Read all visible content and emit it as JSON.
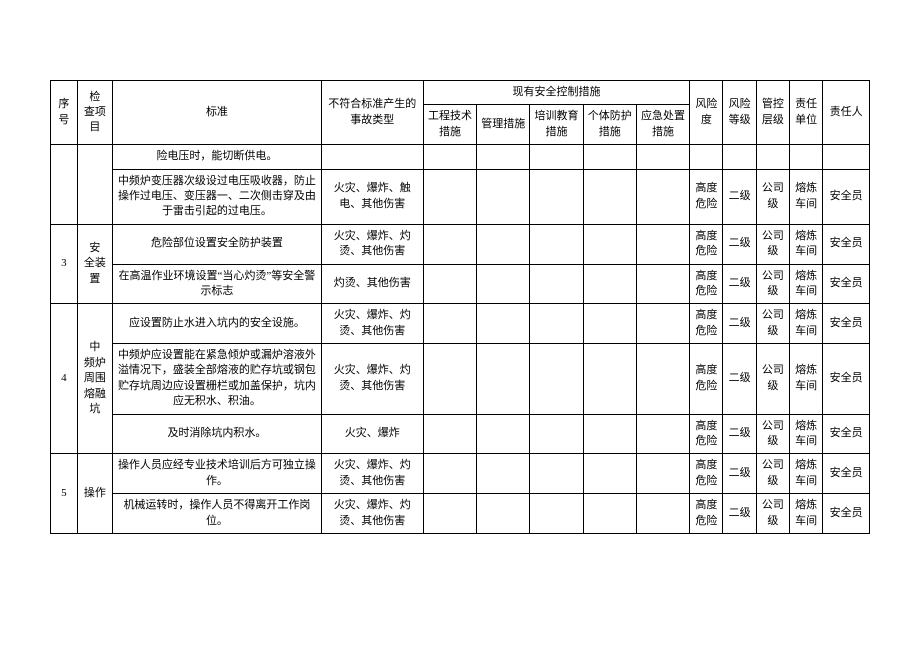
{
  "header": {
    "seq": "序号",
    "item": "检　查项目",
    "std": "标准",
    "acc": "不符合标准产生的事故类型",
    "measures_group": "现有安全控制措施",
    "eng": "工程技术措施",
    "mgmt": "管理措施",
    "edu": "培训教育措施",
    "ppe": "个体防护措施",
    "emg": "应急处置措施",
    "risk": "风险度",
    "level": "风险等级",
    "ctrl": "管控层级",
    "unit": "责任单位",
    "resp": "责任人"
  },
  "rows": [
    {
      "seq": "",
      "item": "",
      "std": "险电压时，能切断供电。",
      "acc": "",
      "eng": "",
      "mgmt": "",
      "edu": "",
      "ppe": "",
      "emg": "",
      "risk": "",
      "level": "",
      "ctrl": "",
      "unit": "",
      "resp": ""
    },
    {
      "seq": "",
      "item": "",
      "std": "中频炉变压器次级设过电压吸收器，防止操作过电压、变压器一、二次侧击穿及由于雷击引起的过电压。",
      "acc": "火灾、爆炸、触电、其他伤害",
      "eng": "",
      "mgmt": "",
      "edu": "",
      "ppe": "",
      "emg": "",
      "risk": "高度危险",
      "level": "二级",
      "ctrl": "公司级",
      "unit": "熔炼车间",
      "resp": "安全员"
    },
    {
      "seq": "3",
      "item": "安　全装置",
      "std": "危险部位设置安全防护装置",
      "acc": "火灾、爆炸、灼烫、其他伤害",
      "eng": "",
      "mgmt": "",
      "edu": "",
      "ppe": "",
      "emg": "",
      "risk": "高度危险",
      "level": "二级",
      "ctrl": "公司级",
      "unit": "熔炼车间",
      "resp": "安全员"
    },
    {
      "seq": "",
      "item": "",
      "std": "在高温作业环境设置“当心灼烫”等安全警示标志",
      "acc": "灼烫、其他伤害",
      "eng": "",
      "mgmt": "",
      "edu": "",
      "ppe": "",
      "emg": "",
      "risk": "高度危险",
      "level": "二级",
      "ctrl": "公司级",
      "unit": "熔炼车间",
      "resp": "安全员"
    },
    {
      "seq": "4",
      "item": "中　频炉　周围　熔融坑",
      "std": "应设置防止水进入坑内的安全设施。",
      "acc": "火灾、爆炸、灼烫、其他伤害",
      "eng": "",
      "mgmt": "",
      "edu": "",
      "ppe": "",
      "emg": "",
      "risk": "高度危险",
      "level": "二级",
      "ctrl": "公司级",
      "unit": "熔炼车间",
      "resp": "安全员"
    },
    {
      "seq": "",
      "item": "",
      "std": "中频炉应设置能在紧急倾炉或漏炉溶液外溢情况下，盛装全部熔液的贮存坑或钢包贮存坑周边应设置栅栏或加盖保护，坑内应无积水、积油。",
      "acc": "火灾、爆炸、灼烫、其他伤害",
      "eng": "",
      "mgmt": "",
      "edu": "",
      "ppe": "",
      "emg": "",
      "risk": "高度危险",
      "level": "二级",
      "ctrl": "公司级",
      "unit": "熔炼车间",
      "resp": "安全员"
    },
    {
      "seq": "",
      "item": "",
      "std": "及时消除坑内积水。",
      "acc": "火灾、爆炸",
      "eng": "",
      "mgmt": "",
      "edu": "",
      "ppe": "",
      "emg": "",
      "risk": "高度危险",
      "level": "二级",
      "ctrl": "公司级",
      "unit": "熔炼车间",
      "resp": "安全员"
    },
    {
      "seq": "5",
      "item": "操作",
      "std": "操作人员应经专业技术培训后方可独立操作。",
      "acc": "火灾、爆炸、灼烫、其他伤害",
      "eng": "",
      "mgmt": "",
      "edu": "",
      "ppe": "",
      "emg": "",
      "risk": "高度危险",
      "level": "二级",
      "ctrl": "公司级",
      "unit": "熔炼车间",
      "resp": "安全员"
    },
    {
      "seq": "",
      "item": "",
      "std": "机械运转时，操作人员不得离开工作岗位。",
      "acc": "火灾、爆炸、灼烫、其他伤害",
      "eng": "",
      "mgmt": "",
      "edu": "",
      "ppe": "",
      "emg": "",
      "risk": "高度危险",
      "level": "二级",
      "ctrl": "公司级",
      "unit": "熔炼车间",
      "resp": "安全员"
    }
  ],
  "spans": {
    "row2_item_span": 2,
    "row4_seq_span": 3,
    "row4_item_span": 3,
    "row7_seq_span": 2,
    "row7_item_span": 2
  }
}
